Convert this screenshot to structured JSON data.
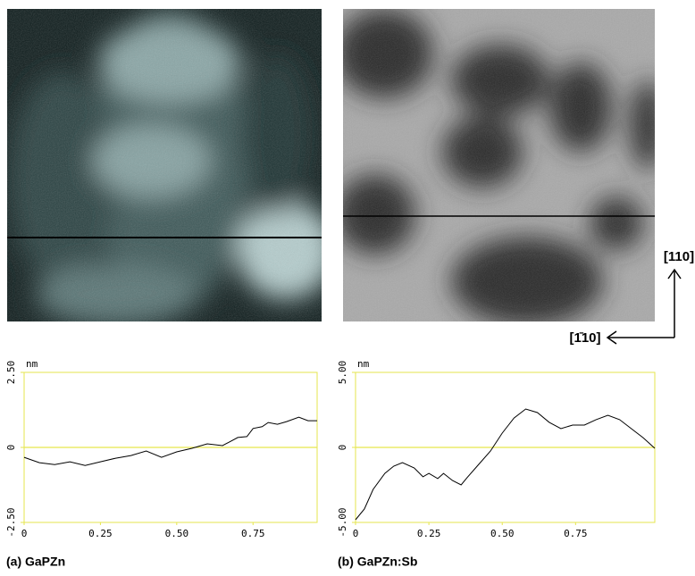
{
  "chart_data": [
    {
      "type": "line",
      "caption": "(a) GaPZn",
      "y_unit": "nm",
      "color": "#000000",
      "frame_color": "#e6e64c",
      "xlim": [
        0,
        0.96
      ],
      "xticks": [
        0,
        0.25,
        {
          "value": 0.5,
          "label": "0.50"
        },
        0.75
      ],
      "ylim": [
        -2.5,
        2.5
      ],
      "yticks": [
        {
          "value": -2.5,
          "label": "-2.50"
        },
        0,
        {
          "value": 2.5,
          "label": "2.50"
        }
      ],
      "zero_line": true,
      "x": [
        0,
        0.05,
        0.1,
        0.15,
        0.2,
        0.25,
        0.3,
        0.35,
        0.4,
        0.45,
        0.5,
        0.55,
        0.6,
        0.65,
        0.7,
        0.73,
        0.75,
        0.78,
        0.8,
        0.83,
        0.86,
        0.9,
        0.93,
        0.96
      ],
      "values": [
        -0.33,
        -0.51,
        -0.57,
        -0.48,
        -0.6,
        -0.48,
        -0.36,
        -0.27,
        -0.12,
        -0.33,
        -0.15,
        -0.03,
        0.12,
        0.06,
        0.33,
        0.36,
        0.63,
        0.69,
        0.83,
        0.77,
        0.86,
        1.01,
        0.89,
        0.89
      ]
    },
    {
      "type": "line",
      "caption": "(b) GaPZn:Sb",
      "y_unit": "nm",
      "color": "#000000",
      "frame_color": "#e6e64c",
      "xlim": [
        0,
        1.02
      ],
      "xticks": [
        0,
        0.25,
        {
          "value": 0.5,
          "label": "0.50"
        },
        0.75
      ],
      "ylim": [
        -5,
        5
      ],
      "yticks": [
        {
          "value": -5,
          "label": "-5.00"
        },
        0,
        {
          "value": 5,
          "label": "5.00"
        }
      ],
      "zero_line": true,
      "x": [
        0,
        0.03,
        0.06,
        0.1,
        0.13,
        0.16,
        0.2,
        0.23,
        0.25,
        0.28,
        0.3,
        0.33,
        0.36,
        0.38,
        0.42,
        0.46,
        0.5,
        0.54,
        0.58,
        0.62,
        0.66,
        0.7,
        0.74,
        0.78,
        0.82,
        0.86,
        0.9,
        0.94,
        0.98,
        1.02
      ],
      "values": [
        -4.82,
        -4.11,
        -2.8,
        -1.73,
        -1.25,
        -1.01,
        -1.37,
        -1.96,
        -1.73,
        -2.08,
        -1.73,
        -2.2,
        -2.5,
        -2.02,
        -1.13,
        -0.24,
        0.95,
        1.96,
        2.56,
        2.32,
        1.67,
        1.25,
        1.49,
        1.49,
        1.85,
        2.14,
        1.85,
        1.25,
        0.65,
        -0.06
      ]
    }
  ],
  "annotations": {
    "direction_vertical": "[110]",
    "direction_horizontal": "[1̄10]"
  }
}
